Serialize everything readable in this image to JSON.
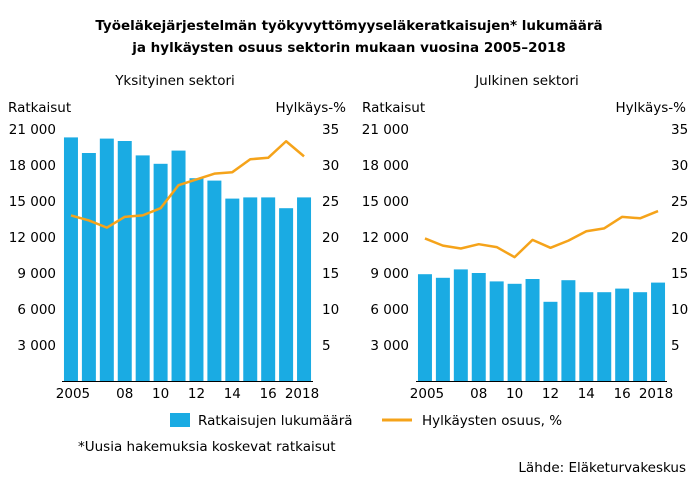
{
  "title_line1": "Työeläkejärjestelmän työkyvyttömyyseläkeratkaisujen* lukumäärä",
  "title_line2": "ja hylkäysten osuus sektorin mukaan vuosina 2005–2018",
  "legend": {
    "bars": "Ratkaisujen lukumäärä",
    "line": "Hylkäysten osuus, %"
  },
  "footnote": "*Uusia hakemuksia koskevat ratkaisut",
  "source": "Lähde: Eläketurvakeskus",
  "colors": {
    "bar": "#1aabe3",
    "line": "#f5a31a",
    "text": "#000000"
  },
  "chart_data": [
    {
      "type": "bar+line",
      "title": "Yksityinen sektori",
      "ylabel": "Ratkaisut",
      "y2label": "Hylkäys-%",
      "ylim": [
        0,
        21000
      ],
      "y2lim": [
        0,
        35
      ],
      "yticks": [
        3000,
        6000,
        9000,
        12000,
        15000,
        18000,
        21000
      ],
      "yticklabels": [
        "3 000",
        "6 000",
        "9 000",
        "12 000",
        "15 000",
        "18 000",
        "21 000"
      ],
      "y2ticks": [
        5,
        10,
        15,
        20,
        25,
        30,
        35
      ],
      "y2ticklabels": [
        "5",
        "10",
        "15",
        "20",
        "25",
        "30",
        "35"
      ],
      "categories": [
        2005,
        2006,
        2007,
        2008,
        2009,
        2010,
        2011,
        2012,
        2013,
        2014,
        2015,
        2016,
        2017,
        2018
      ],
      "xticklabels": {
        "2005": "2005",
        "2008": "08",
        "2010": "10",
        "2012": "12",
        "2014": "14",
        "2016": "16",
        "2018": "2018"
      },
      "series": [
        {
          "name": "Ratkaisujen lukumäärä",
          "kind": "bar",
          "axis": "left",
          "values": [
            20300,
            19000,
            20200,
            20000,
            18800,
            18100,
            19200,
            16900,
            16700,
            15200,
            15300,
            15300,
            14400,
            15300
          ]
        },
        {
          "name": "Hylkäysten osuus, %",
          "kind": "line",
          "axis": "right",
          "values": [
            23.0,
            22.3,
            21.3,
            22.8,
            23.0,
            24.0,
            27.2,
            28.0,
            28.8,
            29.0,
            30.8,
            31.0,
            33.3,
            31.2
          ]
        }
      ]
    },
    {
      "type": "bar+line",
      "title": "Julkinen sektori",
      "ylabel": "Ratkaisut",
      "y2label": "Hylkäys-%",
      "ylim": [
        0,
        21000
      ],
      "y2lim": [
        0,
        35
      ],
      "yticks": [
        3000,
        6000,
        9000,
        12000,
        15000,
        18000,
        21000
      ],
      "yticklabels": [
        "3 000",
        "6 000",
        "9 000",
        "12 000",
        "15 000",
        "18 000",
        "21 000"
      ],
      "y2ticks": [
        5,
        10,
        15,
        20,
        25,
        30,
        35
      ],
      "y2ticklabels": [
        "5",
        "10",
        "15",
        "20",
        "25",
        "30",
        "35"
      ],
      "categories": [
        2005,
        2006,
        2007,
        2008,
        2009,
        2010,
        2011,
        2012,
        2013,
        2014,
        2015,
        2016,
        2017,
        2018
      ],
      "xticklabels": {
        "2005": "2005",
        "2008": "08",
        "2010": "10",
        "2012": "12",
        "2014": "14",
        "2016": "16",
        "2018": "2018"
      },
      "series": [
        {
          "name": "Ratkaisujen lukumäärä",
          "kind": "bar",
          "axis": "left",
          "values": [
            8900,
            8600,
            9300,
            9000,
            8300,
            8100,
            8500,
            6600,
            8400,
            7400,
            7400,
            7700,
            7400,
            8200
          ]
        },
        {
          "name": "Hylkäysten osuus, %",
          "kind": "line",
          "axis": "right",
          "values": [
            19.8,
            18.8,
            18.4,
            19.0,
            18.6,
            17.2,
            19.6,
            18.5,
            19.5,
            20.8,
            21.2,
            22.8,
            22.6,
            23.6
          ]
        }
      ]
    }
  ]
}
